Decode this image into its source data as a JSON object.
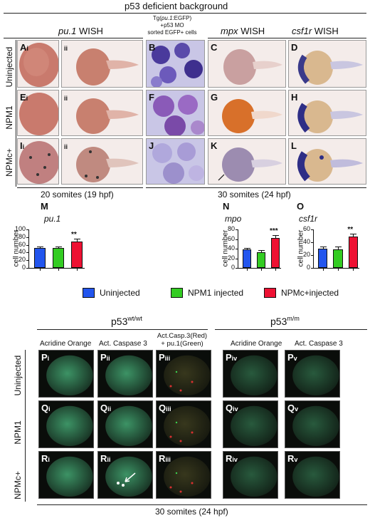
{
  "header": {
    "title": "p53 deficient background"
  },
  "top_columns": {
    "pu1": {
      "gene": "pu.1",
      "method": "WISH"
    },
    "sorted": {
      "line1": "Tg(",
      "line1_gene": "pu.1",
      "line1_rest": ":EGFP)",
      "line2": "+p53 MO",
      "line3": "sorted EGFP+ cells"
    },
    "mpx": {
      "gene": "mpx",
      "method": "WISH"
    },
    "csf1r": {
      "gene": "csf1r",
      "method": "WISH"
    }
  },
  "row_labels": [
    "Uninjected",
    "NPM1",
    "NPMc+"
  ],
  "panel_labels": {
    "A": {
      "letter": "A",
      "sub": "i"
    },
    "A2": {
      "letter": "",
      "sub": "ii"
    },
    "B": {
      "letter": "B",
      "sub": ""
    },
    "C": {
      "letter": "C",
      "sub": ""
    },
    "D": {
      "letter": "D",
      "sub": ""
    },
    "E": {
      "letter": "E",
      "sub": "i"
    },
    "E2": {
      "letter": "",
      "sub": "ii"
    },
    "F": {
      "letter": "F",
      "sub": ""
    },
    "G": {
      "letter": "G",
      "sub": ""
    },
    "H": {
      "letter": "H",
      "sub": ""
    },
    "I": {
      "letter": "I",
      "sub": "i"
    },
    "I2": {
      "letter": "",
      "sub": "ii"
    },
    "J": {
      "letter": "J",
      "sub": ""
    },
    "K": {
      "letter": "K",
      "sub": ""
    },
    "L": {
      "letter": "L",
      "sub": ""
    }
  },
  "stage_labels": {
    "left": "20 somites (19 hpf)",
    "right": "30 somites (24 hpf)",
    "bottom": "30 somites (24 hpf)"
  },
  "chart_data": [
    {
      "type": "bar",
      "panel": "M",
      "title": "pu.1",
      "ylabel": "cell number",
      "ylim": [
        0,
        100
      ],
      "yticks": [
        0,
        20,
        40,
        60,
        80,
        100
      ],
      "categories": [
        "Uninjected",
        "NPM1 injected",
        "NPMc+injected"
      ],
      "values": [
        51,
        51,
        69
      ],
      "errors": [
        3,
        3,
        5
      ],
      "significance": [
        "",
        "",
        "**"
      ]
    },
    {
      "type": "bar",
      "panel": "N",
      "title": "mpo",
      "ylabel": "cell number",
      "ylim": [
        0,
        80
      ],
      "yticks": [
        0,
        20,
        40,
        60,
        80
      ],
      "categories": [
        "Uninjected",
        "NPM1 injected",
        "NPMc+injected"
      ],
      "values": [
        38,
        33,
        62
      ],
      "errors": [
        2,
        2,
        4
      ],
      "significance": [
        "",
        "",
        "***"
      ]
    },
    {
      "type": "bar",
      "panel": "O",
      "title": "csf1r",
      "ylabel": "cell number",
      "ylim": [
        0,
        60
      ],
      "yticks": [
        0,
        20,
        40,
        60
      ],
      "categories": [
        "Uninjected",
        "NPM1 injected",
        "NPMc+injected"
      ],
      "values": [
        30,
        29,
        49
      ],
      "errors": [
        2,
        3,
        3
      ],
      "significance": [
        "",
        "",
        "**"
      ]
    }
  ],
  "legend": [
    {
      "label": "Uninjected",
      "color": "#2255ee"
    },
    {
      "label": "NPM1 injected",
      "color": "#33cc22"
    },
    {
      "label": "NPMc+injected",
      "color": "#ee1133"
    }
  ],
  "bottom_groups": {
    "wt": {
      "base": "p53",
      "sup": "wt/wt"
    },
    "mm": {
      "base": "p53",
      "sup": "m/m"
    }
  },
  "bottom_columns": {
    "ao1": "Acridine Orange",
    "casp1": "Act. Caspase 3",
    "merge_line1": "Act.Casp.3(Red)",
    "merge_line2": "+ pu.1(Green)",
    "ao2": "Acridine Orange",
    "casp2": "Act. Caspase 3"
  },
  "fluor_labels": {
    "Pi": {
      "letter": "P",
      "sub": "i"
    },
    "Pii": {
      "letter": "P",
      "sub": "ii"
    },
    "Piii": {
      "letter": "P",
      "sub": "iii"
    },
    "Piv": {
      "letter": "P",
      "sub": "iv"
    },
    "Pv": {
      "letter": "P",
      "sub": "v"
    },
    "Qi": {
      "letter": "Q",
      "sub": "i"
    },
    "Qii": {
      "letter": "Q",
      "sub": "ii"
    },
    "Qiii": {
      "letter": "Q",
      "sub": "iii"
    },
    "Qiv": {
      "letter": "Q",
      "sub": "iv"
    },
    "Qv": {
      "letter": "Q",
      "sub": "v"
    },
    "Ri": {
      "letter": "R",
      "sub": "i"
    },
    "Rii": {
      "letter": "R",
      "sub": "ii"
    },
    "Riii": {
      "letter": "R",
      "sub": "iii"
    },
    "Riv": {
      "letter": "R",
      "sub": "iv"
    },
    "Rv": {
      "letter": "R",
      "sub": "v"
    }
  }
}
